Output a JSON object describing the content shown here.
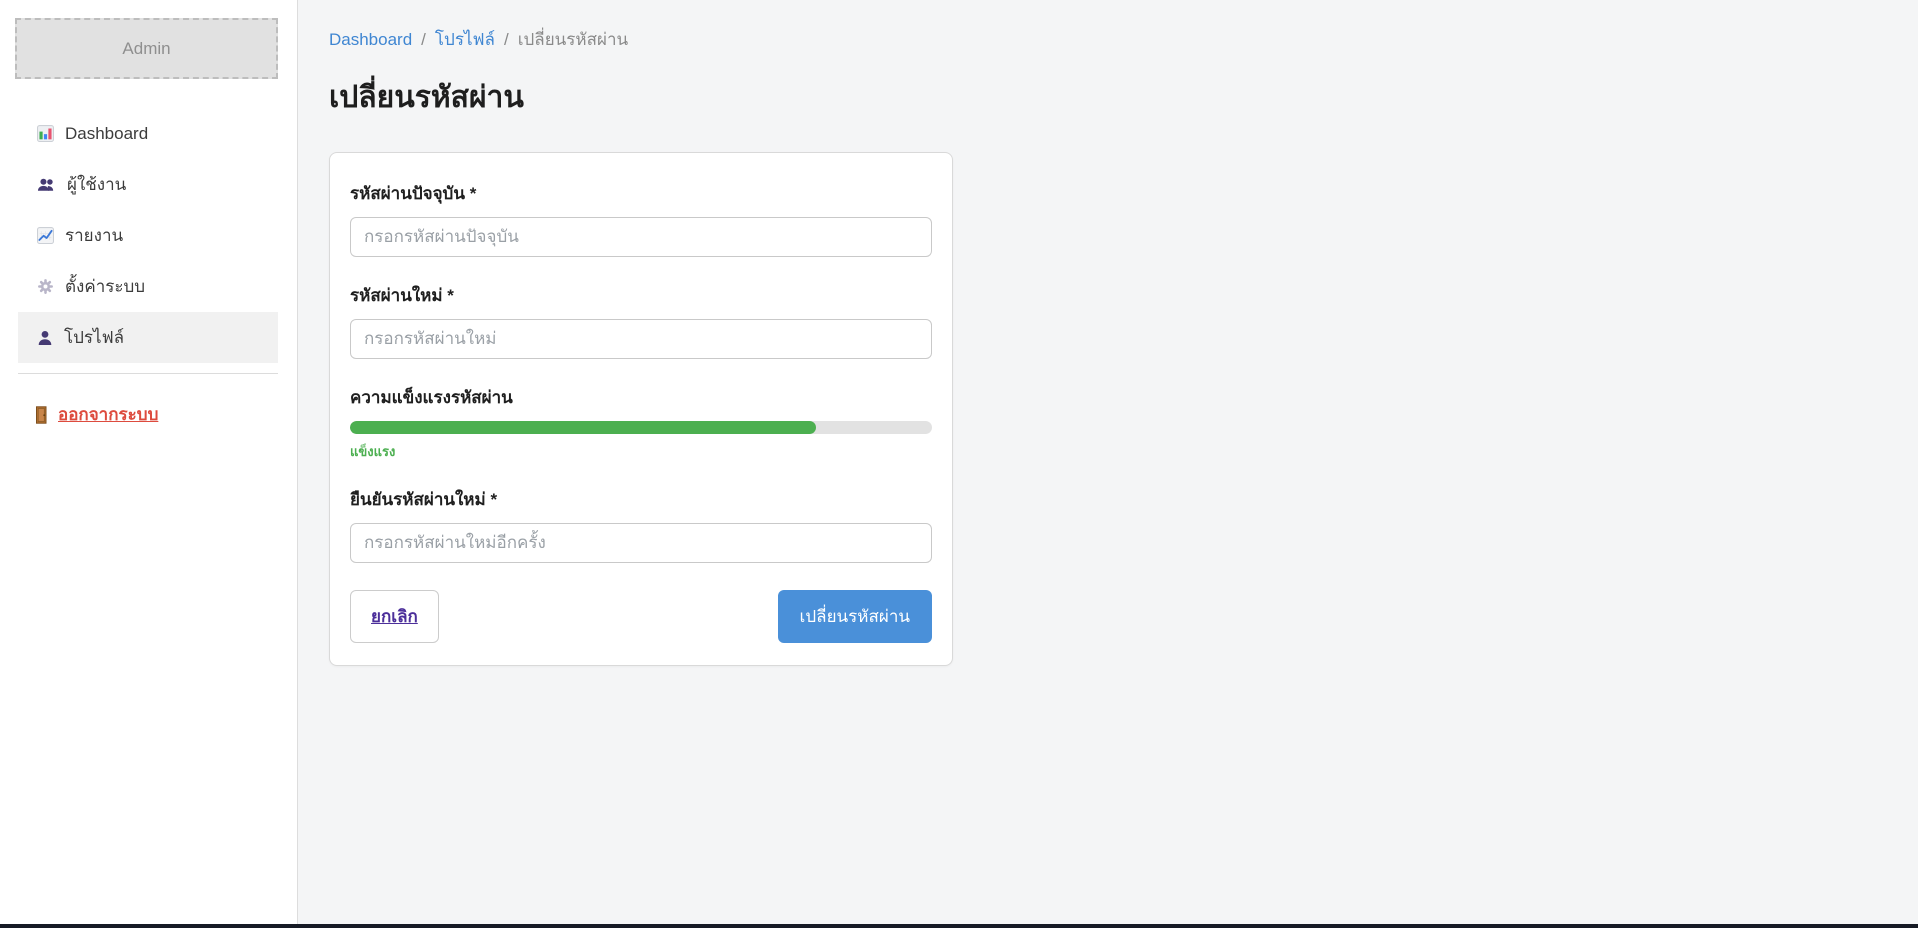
{
  "sidebar": {
    "brand": "Admin",
    "items": [
      {
        "label": "Dashboard",
        "icon": "dashboard-icon",
        "active": false
      },
      {
        "label": "ผู้ใช้งาน",
        "icon": "users-icon",
        "active": false
      },
      {
        "label": "รายงาน",
        "icon": "reports-icon",
        "active": false
      },
      {
        "label": "ตั้งค่าระบบ",
        "icon": "settings-icon",
        "active": false
      },
      {
        "label": "โปรไฟล์",
        "icon": "profile-icon",
        "active": true
      }
    ],
    "logout_label": "ออกจากระบบ"
  },
  "breadcrumb": {
    "separator": "/",
    "items": [
      "Dashboard",
      "โปรไฟล์",
      "เปลี่ยนรหัสผ่าน"
    ]
  },
  "page": {
    "title": "เปลี่ยนรหัสผ่าน"
  },
  "form": {
    "current_password": {
      "label": "รหัสผ่านปัจจุบัน *",
      "placeholder": "กรอกรหัสผ่านปัจจุบัน",
      "value": ""
    },
    "new_password": {
      "label": "รหัสผ่านใหม่ *",
      "placeholder": "กรอกรหัสผ่านใหม่",
      "value": ""
    },
    "strength": {
      "label": "ความแข็งแรงรหัสผ่าน",
      "status": "แข็งแรง",
      "percent": 80
    },
    "confirm_password": {
      "label": "ยืนยันรหัสผ่านใหม่ *",
      "placeholder": "กรอกรหัสผ่านใหม่อีกครั้ง",
      "value": ""
    },
    "actions": {
      "cancel": "ยกเลิก",
      "submit": "เปลี่ยนรหัสผ่าน"
    }
  },
  "colors": {
    "link_blue": "#3f86d2",
    "submit_blue": "#4a90d9",
    "strength_green": "#4caf50",
    "logout_red": "#dd4b3e",
    "cancel_purple": "#4c2f9a",
    "crumb_gray": "#8a8a8a"
  }
}
